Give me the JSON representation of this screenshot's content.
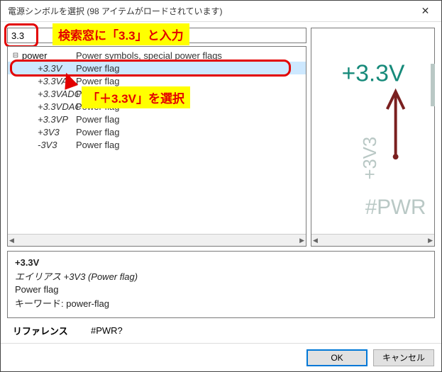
{
  "window_title": "電源シンボルを選択 (98 アイテムがロードされています)",
  "filter": {
    "value": "3.3",
    "placeholder": ""
  },
  "annotations": {
    "search_hint": "検索窓に「3.3」と入力",
    "select_hint": "「＋3.3V」を選択"
  },
  "tree": {
    "root": {
      "label": "power",
      "desc": "Power symbols, special power flags"
    },
    "items": [
      {
        "name": "+3.3V",
        "desc": "Power flag",
        "selected": true
      },
      {
        "name": "+3.3VA",
        "desc": "Power flag"
      },
      {
        "name": "+3.3VADC",
        "desc": "Power flag"
      },
      {
        "name": "+3.3VDAC",
        "desc": "Power flag"
      },
      {
        "name": "+3.3VP",
        "desc": "Power flag"
      },
      {
        "name": "+3V3",
        "desc": "Power flag"
      },
      {
        "name": "-3V3",
        "desc": "Power flag"
      }
    ]
  },
  "preview": {
    "main_text": "+3.3V",
    "side_text": "+3V3",
    "ref_text": "#PWR",
    "colors": {
      "main": "#168a7a",
      "arrow": "#7a1f1f",
      "ghost": "#b9c8c5"
    }
  },
  "info": {
    "name": "+3.3V",
    "alias": "エイリアス +3V3 (Power flag)",
    "desc": "Power flag",
    "keywords_label": "キーワード:",
    "keywords": "power-flag"
  },
  "ref": {
    "label": "リファレンス",
    "value": "#PWR?"
  },
  "buttons": {
    "ok": "OK",
    "cancel": "キャンセル"
  }
}
